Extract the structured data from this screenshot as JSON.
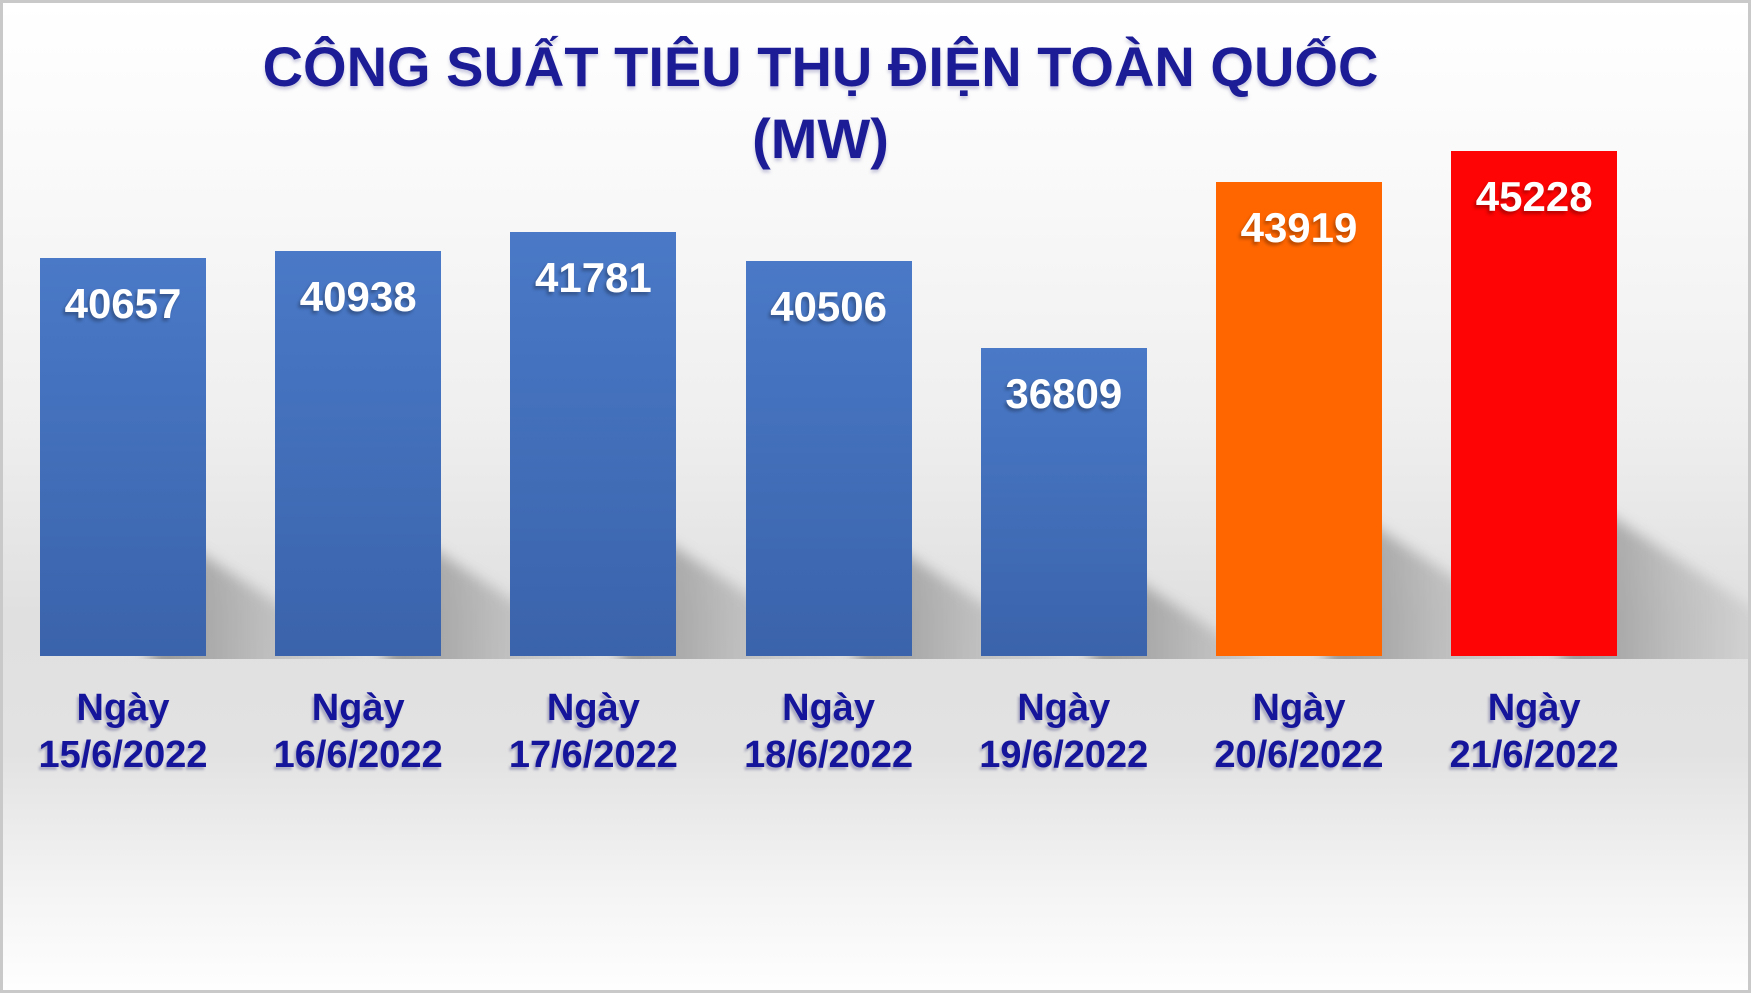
{
  "title": {
    "line1": "CÔNG SUẤT TIÊU THỤ ĐIỆN TOÀN QUỐC",
    "line2": "(MW)"
  },
  "chart_data": {
    "type": "bar",
    "title": "CÔNG SUẤT TIÊU THỤ ĐIỆN TOÀN QUỐC (MW)",
    "xlabel": "",
    "ylabel": "MW",
    "categories": [
      "Ngày 15/6/2022",
      "Ngày 16/6/2022",
      "Ngày 17/6/2022",
      "Ngày 18/6/2022",
      "Ngày 19/6/2022",
      "Ngày 20/6/2022",
      "Ngày 21/6/2022"
    ],
    "values": [
      40657,
      40938,
      41781,
      40506,
      36809,
      43919,
      45228
    ],
    "value_labels": [
      "40657",
      "40938",
      "41781",
      "40506",
      "36809",
      "43919",
      "45228"
    ],
    "bar_color_names": [
      "blue",
      "blue",
      "blue",
      "blue",
      "blue",
      "orange",
      "red"
    ],
    "ylim": [
      23600,
      46000
    ],
    "grid": false,
    "legend": false,
    "value_label_position": "inside-top",
    "axis_visible": false
  },
  "colors": {
    "blue_top": "#4a79c7",
    "blue_bottom": "#3a63ab",
    "orange": "#ff6600",
    "red": "#fe0404",
    "title_text": "#1c1c96",
    "category_text": "#15159b",
    "value_text": "#ffffff"
  }
}
